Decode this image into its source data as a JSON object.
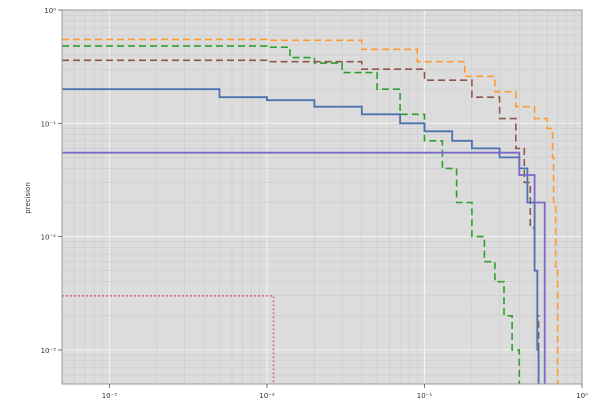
{
  "chart_data": {
    "type": "line",
    "title": "",
    "xlabel": "",
    "ylabel": "precision",
    "xscale": "log",
    "yscale": "log",
    "xlim": [
      0.0005,
      1
    ],
    "ylim": [
      0.0005,
      1
    ],
    "grid": true,
    "legend": "none",
    "colors": {
      "background": "#dcdcdc",
      "grid_major": "#f4f4f4",
      "grid_minor": "#c8c8c8",
      "frame": "#9a9a9a"
    },
    "x_ticks": [
      {
        "value": 0.001,
        "label": "10⁻³"
      },
      {
        "value": 0.01,
        "label": "10⁻²"
      },
      {
        "value": 0.1,
        "label": "10⁻¹"
      },
      {
        "value": 1,
        "label": "10⁰"
      }
    ],
    "y_ticks": [
      {
        "value": 0.001,
        "label": "10⁻³"
      },
      {
        "value": 0.01,
        "label": "10⁻²"
      },
      {
        "value": 0.1,
        "label": "10⁻¹"
      },
      {
        "value": 1,
        "label": "10⁰"
      }
    ],
    "series": [
      {
        "color": "#ff9933",
        "dash": "dashed",
        "x": [
          0.0005,
          0.01,
          0.04,
          0.09,
          0.18,
          0.28,
          0.38,
          0.5,
          0.6,
          0.65,
          0.66,
          0.68,
          0.7
        ],
        "y": [
          0.55,
          0.54,
          0.45,
          0.35,
          0.26,
          0.19,
          0.14,
          0.11,
          0.09,
          0.05,
          0.02,
          0.005,
          0.0005
        ]
      },
      {
        "color": "#2ca02c",
        "dash": "dashed",
        "x": [
          0.0005,
          0.01,
          0.014,
          0.02,
          0.03,
          0.05,
          0.07,
          0.1,
          0.13,
          0.16,
          0.2,
          0.24,
          0.28,
          0.32,
          0.36,
          0.4
        ],
        "y": [
          0.48,
          0.47,
          0.38,
          0.34,
          0.28,
          0.2,
          0.12,
          0.07,
          0.04,
          0.02,
          0.01,
          0.006,
          0.004,
          0.002,
          0.001,
          0.0005
        ]
      },
      {
        "color": "#8c564b",
        "dash": "dashed",
        "x": [
          0.0005,
          0.01,
          0.04,
          0.1,
          0.2,
          0.3,
          0.38,
          0.43,
          0.47,
          0.5,
          0.52,
          0.53
        ],
        "y": [
          0.36,
          0.35,
          0.3,
          0.24,
          0.17,
          0.11,
          0.06,
          0.03,
          0.012,
          0.005,
          0.002,
          0.0005
        ]
      },
      {
        "color": "#4c72b0",
        "dash": "solid",
        "x": [
          0.0005,
          0.002,
          0.005,
          0.01,
          0.02,
          0.04,
          0.07,
          0.1,
          0.15,
          0.2,
          0.3,
          0.4,
          0.45,
          0.5,
          0.52,
          0.53
        ],
        "y": [
          0.2,
          0.2,
          0.17,
          0.16,
          0.14,
          0.12,
          0.1,
          0.085,
          0.07,
          0.06,
          0.05,
          0.04,
          0.02,
          0.005,
          0.001,
          0.0005
        ]
      },
      {
        "color": "#7b68c8",
        "dash": "solid",
        "x": [
          0.0005,
          0.4,
          0.4,
          0.5,
          0.5,
          0.58,
          0.58
        ],
        "y": [
          0.055,
          0.055,
          0.035,
          0.035,
          0.02,
          0.02,
          0.0005
        ]
      },
      {
        "color": "#e06c8a",
        "dash": "dotted",
        "x": [
          0.0005,
          0.011,
          0.011
        ],
        "y": [
          0.003,
          0.003,
          0.0005
        ]
      }
    ]
  }
}
